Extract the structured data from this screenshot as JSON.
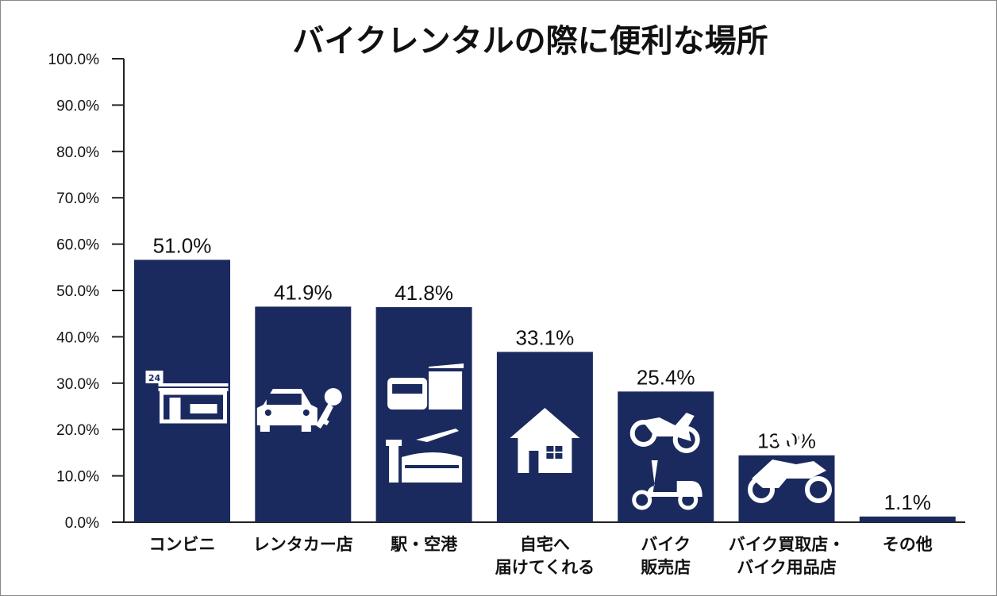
{
  "chart_data": {
    "type": "bar",
    "title": "バイクレンタルの際に便利な場所",
    "categories": [
      [
        "コンビニ"
      ],
      [
        "レンタカー店"
      ],
      [
        "駅・空港"
      ],
      [
        "自宅へ",
        "届けてくれる"
      ],
      [
        "バイク",
        "販売店"
      ],
      [
        "バイク買取店・",
        "バイク用品店"
      ],
      [
        "その他"
      ]
    ],
    "values": [
      51.0,
      41.9,
      41.8,
      33.1,
      25.4,
      13.0,
      1.1
    ],
    "value_labels": [
      "51.0%",
      "41.9%",
      "41.8%",
      "33.1%",
      "25.4%",
      "13.0%",
      "1.1%"
    ],
    "icons": [
      "convenience-store-icon",
      "car-and-key-icon",
      "train-and-airport-icon",
      "house-icon",
      "motorcycle-and-scooter-icon",
      "tire-and-sportbike-icon",
      ""
    ],
    "yticks": [
      "0.0%",
      "10.0%",
      "20.0%",
      "30.0%",
      "40.0%",
      "50.0%",
      "60.0%",
      "70.0%",
      "80.0%",
      "90.0%",
      "100.0%"
    ],
    "ylim": [
      0,
      100
    ],
    "xlabel": "",
    "ylabel": "",
    "grid": false,
    "bar_color": "#1b2a5e"
  }
}
